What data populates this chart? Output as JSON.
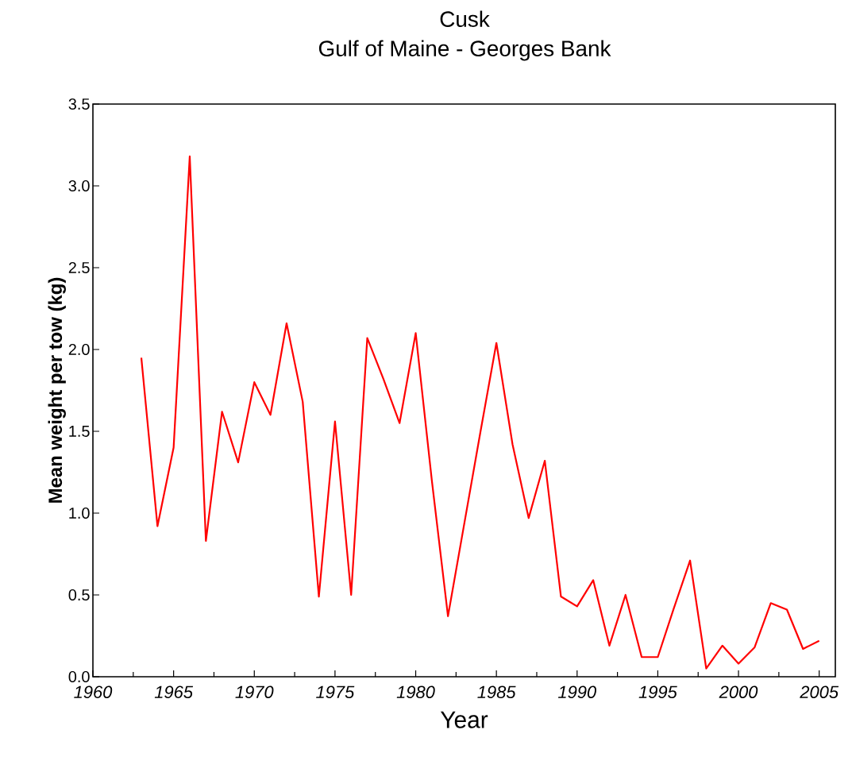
{
  "chart_data": {
    "type": "line",
    "title": "Cusk",
    "subtitle": "Gulf of Maine - Georges Bank",
    "xlabel": "Year",
    "ylabel": "Mean weight per tow (kg)",
    "x": [
      1963,
      1964,
      1965,
      1966,
      1967,
      1968,
      1969,
      1970,
      1971,
      1972,
      1973,
      1974,
      1975,
      1976,
      1977,
      1978,
      1979,
      1980,
      1981,
      1982,
      1983,
      1984,
      1985,
      1986,
      1987,
      1988,
      1989,
      1990,
      1991,
      1992,
      1993,
      1994,
      1995,
      1996,
      1997,
      1998,
      1999,
      2000,
      2001,
      2002,
      2003,
      2004,
      2005
    ],
    "series": [
      {
        "color": "#ff0000",
        "values": [
          1.95,
          0.92,
          1.4,
          3.18,
          0.83,
          1.62,
          1.31,
          1.8,
          1.6,
          2.16,
          1.68,
          0.49,
          1.56,
          0.5,
          2.07,
          1.82,
          1.55,
          2.1,
          1.2,
          0.37,
          0.93,
          1.49,
          2.04,
          1.42,
          0.97,
          1.32,
          0.49,
          0.43,
          0.59,
          0.19,
          0.5,
          0.12,
          0.12,
          0.42,
          0.71,
          0.05,
          0.19,
          0.08,
          0.18,
          0.45,
          0.41,
          0.17,
          0.22
        ]
      }
    ],
    "xlim": [
      1960,
      2006
    ],
    "ylim": [
      0,
      3.5
    ],
    "xticks": [
      1960,
      1965,
      1970,
      1975,
      1980,
      1985,
      1990,
      1995,
      2000,
      2005
    ],
    "yticks": [
      {
        "value": 0,
        "label": "0.0"
      },
      {
        "value": 0.5,
        "label": "0.5"
      },
      {
        "value": 1,
        "label": "1.0"
      },
      {
        "value": 1.5,
        "label": "1.5"
      },
      {
        "value": 2,
        "label": "2.0"
      },
      {
        "value": 2.5,
        "label": "2.5"
      },
      {
        "value": 3,
        "label": "3.0"
      },
      {
        "value": 3.5,
        "label": "3.5"
      }
    ],
    "grid": false,
    "marker": "none",
    "line_style": "solid"
  }
}
